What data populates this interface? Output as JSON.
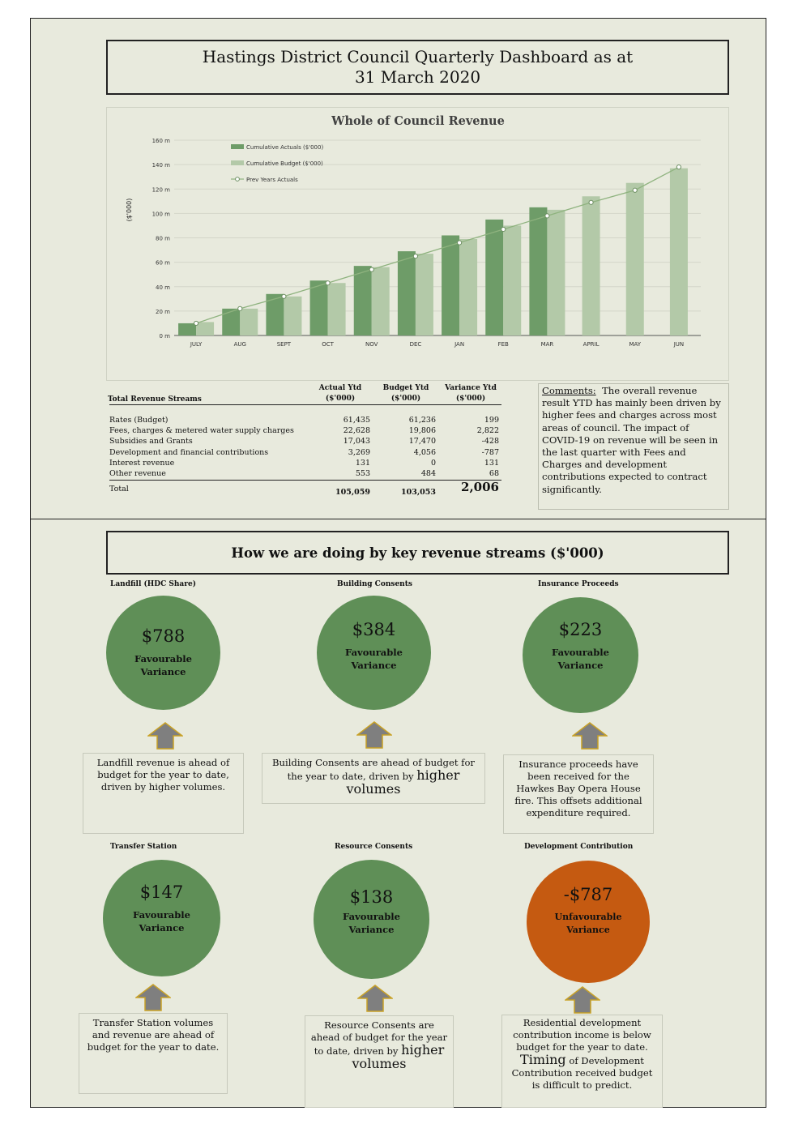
{
  "title": {
    "line1": "Hastings District Council Quarterly Dashboard as at",
    "line2": "31 March 2020"
  },
  "colors": {
    "actual": "#6e9c68",
    "budget": "#b3c9a8",
    "prev": "#8fb37f",
    "favourable": "#5f8f57",
    "unfavourable": "#c55a11",
    "arrow": "#7f7f7f",
    "arrow_border": "#c9a227"
  },
  "chart_data": {
    "type": "bar",
    "title": "Whole of Council Revenue",
    "ylabel": "($'000)",
    "ylim": [
      0,
      160
    ],
    "yticks": [
      "0 m",
      "20 m",
      "40 m",
      "60 m",
      "80 m",
      "100 m",
      "120 m",
      "140 m",
      "160 m"
    ],
    "categories": [
      "JULY",
      "AUG",
      "SEPT",
      "OCT",
      "NOV",
      "DEC",
      "JAN",
      "FEB",
      "MAR",
      "APRIL",
      "MAY",
      "JUN"
    ],
    "series": [
      {
        "name": "Cumulative Actuals ($'000)",
        "kind": "bar",
        "values": [
          10,
          22,
          34,
          45,
          57,
          69,
          82,
          95,
          105,
          null,
          null,
          null
        ]
      },
      {
        "name": "Cumulative Budget ($'000)",
        "kind": "bar",
        "values": [
          11,
          22,
          32,
          43,
          56,
          67,
          79,
          90,
          103,
          114,
          125,
          137
        ]
      },
      {
        "name": "Prev Years Actuals",
        "kind": "line",
        "values": [
          10,
          22,
          32,
          43,
          54,
          65,
          76,
          87,
          98,
          109,
          119,
          138
        ]
      }
    ],
    "legend": "top-left"
  },
  "table": {
    "header_label": "Total Revenue Streams",
    "columns": [
      {
        "l1": "Actual Ytd",
        "l2": "($'000)"
      },
      {
        "l1": "Budget Ytd",
        "l2": "($'000)"
      },
      {
        "l1": "Variance Ytd",
        "l2": "($'000)"
      }
    ],
    "rows": [
      {
        "name": "Rates (Budget)",
        "actual": "61,435",
        "budget": "61,236",
        "variance": "199"
      },
      {
        "name": "Fees, charges & metered water supply charges",
        "actual": "22,628",
        "budget": "19,806",
        "variance": "2,822"
      },
      {
        "name": "Subsidies and Grants",
        "actual": "17,043",
        "budget": "17,470",
        "variance": "-428"
      },
      {
        "name": "Development and financial contributions",
        "actual": "3,269",
        "budget": "4,056",
        "variance": "-787"
      },
      {
        "name": "Interest revenue",
        "actual": "131",
        "budget": "0",
        "variance": "131"
      },
      {
        "name": "Other revenue",
        "actual": "553",
        "budget": "484",
        "variance": "68"
      }
    ],
    "total": {
      "name": "Total",
      "actual": "105,059",
      "budget": "103,053",
      "variance": "2,006"
    }
  },
  "comments": {
    "label": "Comments:",
    "text": "The overall revenue result YTD has mainly been driven by higher fees and charges across most areas of council.  The impact of COVID-19 on revenue will be seen in the last quarter with Fees and Charges and development contributions expected to contract significantly."
  },
  "section_title": "How we are doing by key revenue streams  ($'000)",
  "streams": [
    {
      "title": "Landfill (HDC Share)",
      "amount": "$788",
      "l1": "Favourable",
      "l2": "Variance",
      "status": "favourable",
      "note": "Landfill revenue is ahead of budget for the year to date, driven by higher volumes.",
      "note_big": ""
    },
    {
      "title": "Building Consents",
      "amount": "$384",
      "l1": "Favourable",
      "l2": "Variance",
      "status": "favourable",
      "note": "Building Consents are ahead of budget for the year to date, driven by",
      "note_big": "higher volumes"
    },
    {
      "title": "Insurance Proceeds",
      "amount": "$223",
      "l1": "Favourable",
      "l2": "Variance",
      "status": "favourable",
      "note": "Insurance proceeds have been received for the Hawkes Bay Opera House fire.  This offsets additional expenditure required.",
      "note_big": ""
    },
    {
      "title": "Transfer Station",
      "amount": "$147",
      "l1": "Favourable",
      "l2": "Variance",
      "status": "favourable",
      "note": "Transfer Station volumes and revenue are ahead of budget for the year to date.",
      "note_big": ""
    },
    {
      "title": "Resource Consents",
      "amount": "$138",
      "l1": "Favourable",
      "l2": "Variance",
      "status": "favourable",
      "note": "Resource Consents are ahead of budget for the year to date, driven by",
      "note_big": "higher volumes"
    },
    {
      "title": "Development Contribution",
      "amount": "-$787",
      "l1": "Unfavourable",
      "l2": "Variance",
      "status": "unfavourable",
      "note": "Residential development contribution income is below budget for the year to date.",
      "note_big": "Timing",
      "note_tail": "of Development Contribution received budget is difficult to predict."
    }
  ]
}
